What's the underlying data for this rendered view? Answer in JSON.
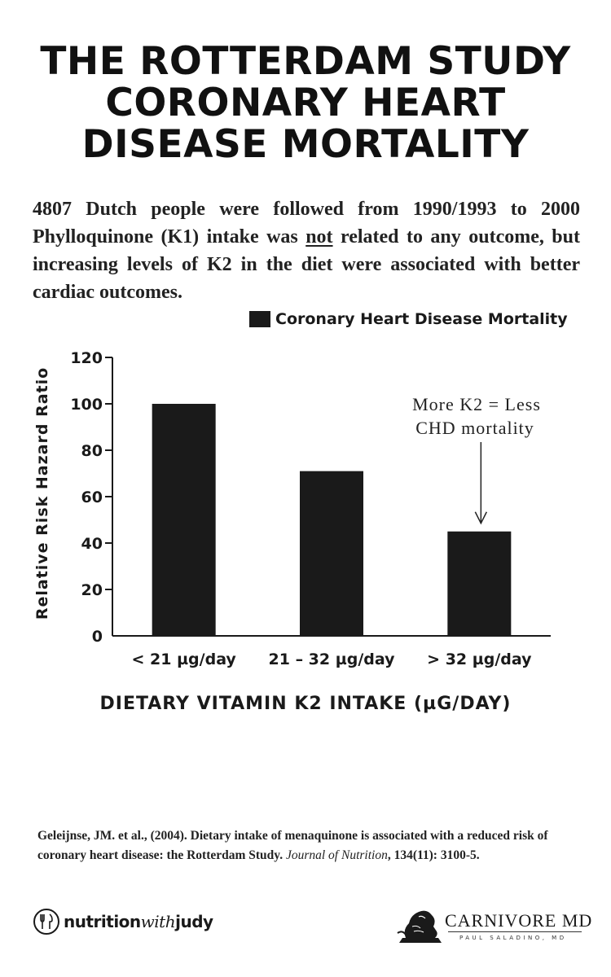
{
  "title": {
    "line1": "THE ROTTERDAM STUDY",
    "line2": "CORONARY HEART",
    "line3": "DISEASE MORTALITY"
  },
  "intro": {
    "line1": "4807 Dutch people were followed from 1990/1993 to 2000",
    "line2_before": "Phylloquinone (K1) intake was ",
    "line2_underlined": "not",
    "line2_after": " related to any outcome, but",
    "line3": "increasing levels of K2 in the diet were associated with better",
    "line4": "cardiac outcomes."
  },
  "chart_data": {
    "type": "bar",
    "categories": [
      "< 21 µg/day",
      "21 – 32 µg/day",
      "> 32 µg/day"
    ],
    "series": [
      {
        "name": "Coronary Heart Disease Mortality",
        "values": [
          100,
          71,
          45
        ],
        "color": "#1a1a1a"
      }
    ],
    "xlabel": "DIETARY VITAMIN K2 INTAKE (µG/DAY)",
    "ylabel": "Relative Risk Hazard Ratio",
    "ylim": [
      0,
      120
    ],
    "yticks": [
      0,
      20,
      40,
      60,
      80,
      100,
      120
    ],
    "legend": "top-right",
    "grid": false,
    "annotation": {
      "line1": "More K2 = Less",
      "line2": "CHD mortality",
      "points_to": "> 32 µg/day"
    }
  },
  "citation": {
    "text_before": "Geleijnse, JM. et al., (2004). Dietary intake of menaquinone is associated with a reduced risk of coronary heart disease: the Rotterdam Study. ",
    "journal": "Journal of Nutrition",
    "text_after": ", 134(11): 3100-5."
  },
  "logos": {
    "left_prefix": "nutrition",
    "left_middle": "with",
    "left_suffix": "judy",
    "right_title": "CARNIVORE MD",
    "right_subtitle": "PAUL SALADINO, MD"
  }
}
